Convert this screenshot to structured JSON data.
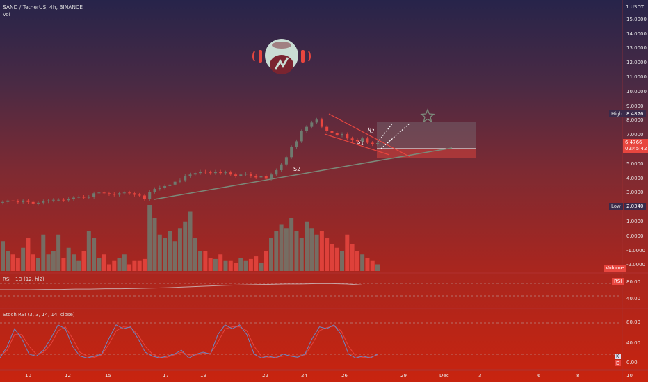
{
  "header": {
    "symbol_line": "SAND / TetherUS, 4h, BINANCE",
    "vol_label": "Vol"
  },
  "price_axis": {
    "unit_label": "1 USDT",
    "ticks": [
      "15.0000",
      "14.0000",
      "13.0000",
      "12.0000",
      "11.0000",
      "10.0000",
      "9.0000",
      "8.0000",
      "7.0000",
      "6.0000",
      "5.0000",
      "4.0000",
      "3.0000",
      "2.0000",
      "1.0000",
      "0.0000",
      "-1.0000",
      "-2.0000"
    ],
    "high_label": "High",
    "high_value": "8.4876",
    "last_price": "6.4766",
    "countdown": "02:45:42",
    "low_label": "Low",
    "low_value": "2.0340",
    "volume_tag": "Volume"
  },
  "annotations": {
    "r1": "R1",
    "s1": "S1",
    "s2": "S2"
  },
  "rsi": {
    "title": "RSI · 1D (12, hl2)",
    "badge": "RSI",
    "ticks": [
      "80.00",
      "40.00"
    ]
  },
  "stoch": {
    "title": "Stoch RSI (3, 3, 14, 14, close)",
    "ticks": [
      "80.00",
      "40.00",
      "0.00"
    ],
    "badge_k": "K",
    "badge_d": "D"
  },
  "time_axis": {
    "labels": [
      "10",
      "12",
      "15",
      "17",
      "19",
      "22",
      "24",
      "26",
      "29",
      "Dec",
      "3",
      "6",
      "8",
      "10"
    ]
  },
  "colors": {
    "up": "#6f7a6f",
    "down": "#e8463f",
    "line_rsi": "#c9a4a4",
    "stoch_k": "#6a88c4",
    "stoch_d": "#e8463f",
    "logo": "#c9ddd4"
  },
  "chart_data": {
    "type": "candlestick",
    "series_price": [
      2.4,
      2.5,
      2.45,
      2.38,
      2.5,
      2.4,
      2.3,
      2.35,
      2.45,
      2.5,
      2.55,
      2.55,
      2.52,
      2.6,
      2.7,
      2.75,
      2.7,
      2.75,
      3.0,
      3.05,
      3.0,
      2.95,
      2.9,
      3.0,
      3.05,
      3.0,
      2.9,
      2.85,
      2.6,
      3.1,
      3.3,
      3.4,
      3.5,
      3.6,
      3.8,
      3.9,
      4.2,
      4.3,
      4.4,
      4.5,
      4.45,
      4.4,
      4.5,
      4.4,
      4.45,
      4.3,
      4.2,
      4.3,
      4.35,
      4.2,
      4.1,
      4.2,
      4.0,
      4.3,
      4.6,
      5.0,
      5.5,
      6.2,
      6.6,
      7.3,
      7.6,
      7.9,
      8.1,
      7.6,
      7.3,
      7.2,
      7.0,
      7.1,
      6.8,
      6.7,
      6.6,
      6.8,
      6.5,
      6.4,
      6.4766
    ],
    "series_volume": [
      0.45,
      0.3,
      0.25,
      0.2,
      0.35,
      0.5,
      0.25,
      0.2,
      0.55,
      0.25,
      0.3,
      0.55,
      0.2,
      0.35,
      0.25,
      0.15,
      0.3,
      0.6,
      0.5,
      0.2,
      0.25,
      0.1,
      0.15,
      0.2,
      0.25,
      0.1,
      0.15,
      0.15,
      0.18,
      1.0,
      0.8,
      0.55,
      0.5,
      0.6,
      0.45,
      0.65,
      0.75,
      0.9,
      0.5,
      0.3,
      0.3,
      0.2,
      0.18,
      0.25,
      0.15,
      0.15,
      0.12,
      0.2,
      0.15,
      0.18,
      0.22,
      0.12,
      0.3,
      0.5,
      0.6,
      0.7,
      0.65,
      0.8,
      0.6,
      0.5,
      0.75,
      0.65,
      0.55,
      0.6,
      0.5,
      0.4,
      0.35,
      0.3,
      0.55,
      0.4,
      0.3,
      0.25,
      0.2,
      0.15,
      0.1
    ],
    "series_rsi": [
      60,
      60,
      60,
      61,
      61,
      62,
      62,
      63,
      63,
      64,
      65,
      66,
      68,
      70,
      72,
      74,
      75,
      76,
      77,
      78,
      78,
      79,
      79,
      78,
      75
    ],
    "series_stoch_k": [
      10,
      40,
      85,
      60,
      20,
      15,
      30,
      60,
      95,
      85,
      40,
      15,
      10,
      15,
      20,
      60,
      95,
      85,
      90,
      60,
      25,
      15,
      10,
      15,
      20,
      30,
      10,
      20,
      25,
      20,
      70,
      95,
      85,
      95,
      70,
      20,
      10,
      15,
      10,
      20,
      15,
      12,
      20,
      60,
      90,
      85,
      95,
      70,
      20,
      10,
      15,
      10,
      20
    ],
    "series_stoch_d": [
      15,
      30,
      70,
      70,
      40,
      20,
      25,
      45,
      80,
      90,
      60,
      25,
      15,
      12,
      18,
      45,
      80,
      90,
      88,
      70,
      40,
      20,
      12,
      12,
      18,
      25,
      18,
      18,
      22,
      22,
      50,
      85,
      90,
      90,
      80,
      40,
      15,
      12,
      12,
      15,
      16,
      15,
      18,
      45,
      80,
      88,
      92,
      80,
      40,
      15,
      12,
      12,
      18
    ],
    "high": 8.4876,
    "low": 2.034,
    "last": 6.4766,
    "rsi_levels": [
      80,
      40
    ],
    "stoch_levels": [
      80,
      40,
      0
    ]
  }
}
